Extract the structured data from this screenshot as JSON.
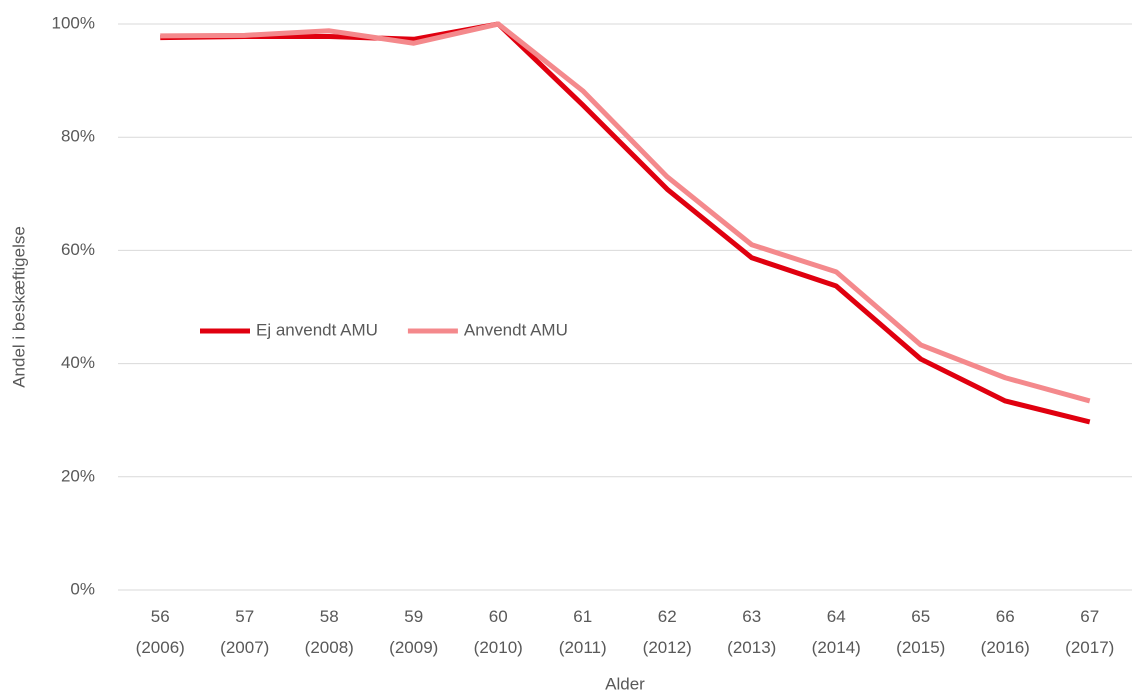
{
  "chart_data": {
    "type": "line",
    "y_label": "Andel i beskæftigelse",
    "x_label": "Alder",
    "categories": [
      "56 (2006)",
      "57 (2007)",
      "58 (2008)",
      "59 (2009)",
      "60 (2010)",
      "61 (2011)",
      "62 (2012)",
      "63 (2013)",
      "64 (2014)",
      "65 (2015)",
      "66 (2016)",
      "67 (2017)"
    ],
    "series": [
      {
        "name": "Ej anvendt AMU",
        "color": "#e0000f",
        "values": [
          97.6,
          97.8,
          97.8,
          97.3,
          100,
          85.7,
          70.8,
          58.7,
          53.7,
          40.8,
          33.4,
          29.7
        ]
      },
      {
        "name": "Anvendt AMU",
        "color": "#f4898c",
        "values": [
          97.9,
          98,
          98.8,
          96.6,
          100,
          88.2,
          73,
          61,
          56.2,
          43.3,
          37.5,
          33.4
        ]
      }
    ],
    "ylim": [
      0,
      100
    ],
    "yticks": [
      {
        "value": 0,
        "label": "0%"
      },
      {
        "value": 20,
        "label": "20%"
      },
      {
        "value": 40,
        "label": "40%"
      },
      {
        "value": 60,
        "label": "60%"
      },
      {
        "value": 80,
        "label": "80%"
      },
      {
        "value": 100,
        "label": "100%"
      }
    ],
    "grid": true,
    "legend": "center-left"
  }
}
